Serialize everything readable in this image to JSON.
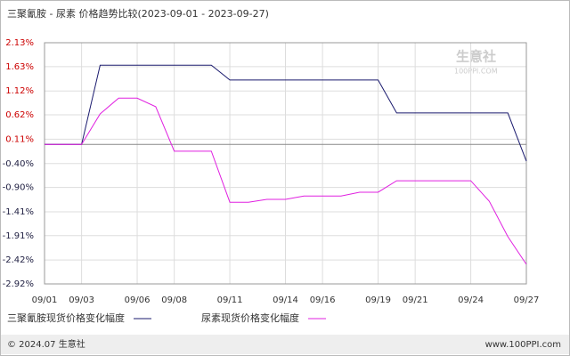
{
  "chart_data": {
    "type": "line",
    "title": "三聚氰胺 - 尿素 价格趋势比较(2023-09-01 - 2023-09-27)",
    "categories": [
      "09/01",
      null,
      "09/03",
      null,
      null,
      "09/06",
      null,
      "09/08",
      null,
      null,
      "09/11",
      null,
      null,
      "09/14",
      null,
      "09/16",
      null,
      null,
      "09/19",
      null,
      "09/21",
      null,
      null,
      "09/24",
      null,
      null,
      "09/27"
    ],
    "series": [
      {
        "name": "三聚氰胺现货价格变化幅度",
        "color": "#1a1a6e",
        "values": [
          0,
          0,
          0,
          1.66,
          1.66,
          1.66,
          1.66,
          1.66,
          1.66,
          1.66,
          1.35,
          1.35,
          1.35,
          1.35,
          1.35,
          1.35,
          1.35,
          1.35,
          1.35,
          0.66,
          0.66,
          0.66,
          0.66,
          0.66,
          0.66,
          0.66,
          -0.35
        ]
      },
      {
        "name": "尿素现货价格变化幅度",
        "color": "#e020e0",
        "values": [
          0,
          0,
          0,
          0.64,
          0.97,
          0.97,
          0.79,
          -0.14,
          -0.14,
          -0.14,
          -1.21,
          -1.21,
          -1.15,
          -1.15,
          -1.08,
          -1.08,
          -1.08,
          -1.0,
          -1.0,
          -0.76,
          -0.76,
          -0.76,
          -0.76,
          -0.76,
          -1.19,
          -1.93,
          -2.51
        ]
      }
    ],
    "ylim": [
      -2.92,
      2.13
    ],
    "yticks": [
      {
        "value": 2.13,
        "label": "2.13%"
      },
      {
        "value": 1.63,
        "label": "1.63%"
      },
      {
        "value": 1.12,
        "label": "1.12%"
      },
      {
        "value": 0.62,
        "label": "0.62%"
      },
      {
        "value": 0.11,
        "label": "0.11%"
      },
      {
        "value": -0.4,
        "label": "-0.40%"
      },
      {
        "value": -0.9,
        "label": "-0.90%"
      },
      {
        "value": -1.41,
        "label": "-1.41%"
      },
      {
        "value": -1.91,
        "label": "-1.91%"
      },
      {
        "value": -2.42,
        "label": "-2.42%"
      },
      {
        "value": -2.92,
        "label": "-2.92%"
      }
    ],
    "grid": true,
    "watermark": [
      "生意社",
      "100PPI.COM"
    ],
    "footer_left": "© 2024.07 生意社",
    "footer_right": "www.100PPI.com"
  }
}
